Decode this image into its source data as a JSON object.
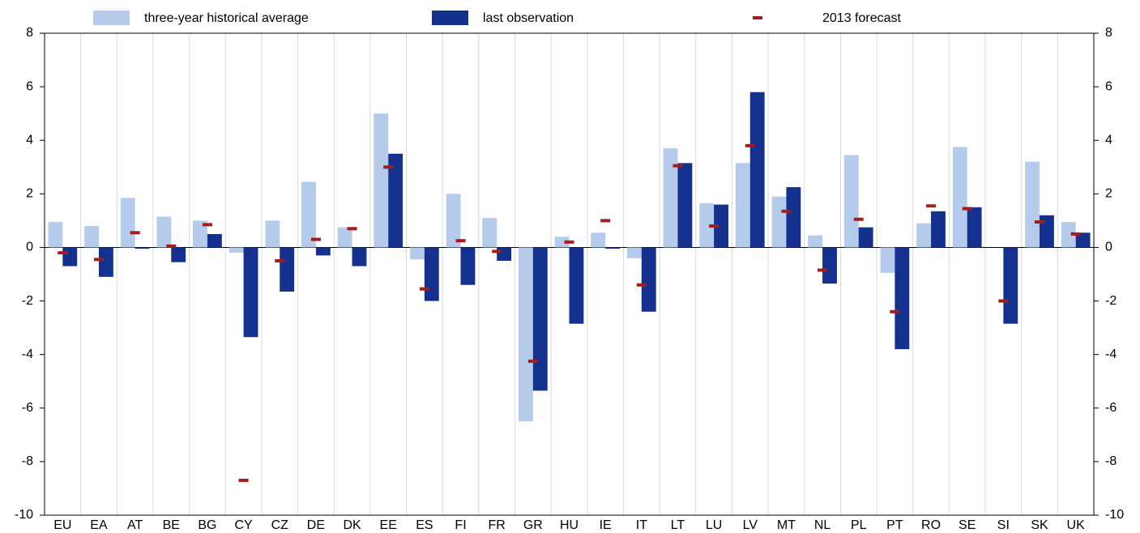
{
  "chart_data": {
    "type": "bar",
    "categories": [
      "EU",
      "EA",
      "AT",
      "BE",
      "BG",
      "CY",
      "CZ",
      "DE",
      "DK",
      "EE",
      "ES",
      "FI",
      "FR",
      "GR",
      "HU",
      "IE",
      "IT",
      "LT",
      "LU",
      "LV",
      "MT",
      "NL",
      "PL",
      "PT",
      "RO",
      "SE",
      "SI",
      "SK",
      "UK"
    ],
    "series": [
      {
        "name": "three-year historical average",
        "color": "#b4cbeb",
        "style": "bar",
        "values": [
          0.95,
          0.8,
          1.85,
          1.15,
          1.0,
          -0.2,
          1.0,
          2.45,
          0.75,
          5.0,
          -0.45,
          2.0,
          1.1,
          -6.5,
          0.4,
          0.55,
          -0.4,
          3.7,
          1.65,
          3.15,
          1.9,
          0.45,
          3.45,
          -0.95,
          0.9,
          3.75,
          0.0,
          3.2,
          0.95
        ]
      },
      {
        "name": "last observation",
        "color": "#14318f",
        "style": "bar",
        "values": [
          -0.7,
          -1.1,
          -0.05,
          -0.55,
          0.5,
          -3.35,
          -1.65,
          -0.3,
          -0.7,
          3.5,
          -2.0,
          -1.4,
          -0.5,
          -5.35,
          -2.85,
          -0.05,
          -2.4,
          3.15,
          1.6,
          5.8,
          2.25,
          -1.35,
          0.75,
          -3.8,
          1.35,
          1.5,
          -2.85,
          1.2,
          0.55
        ]
      },
      {
        "name": "2013 forecast",
        "color": "#a51c1c",
        "style": "marker",
        "values": [
          -0.2,
          -0.45,
          0.55,
          0.05,
          0.85,
          -8.7,
          -0.5,
          0.3,
          0.7,
          3.0,
          -1.55,
          0.25,
          -0.15,
          -4.25,
          0.2,
          1.0,
          -1.4,
          3.05,
          0.8,
          3.8,
          1.35,
          -0.85,
          1.05,
          -2.4,
          1.55,
          1.45,
          -2.0,
          0.95,
          0.5
        ]
      }
    ],
    "ylim": [
      -10,
      8
    ],
    "yticks": [
      -10,
      -8,
      -6,
      -4,
      -2,
      0,
      2,
      4,
      6,
      8
    ],
    "grid": true
  }
}
